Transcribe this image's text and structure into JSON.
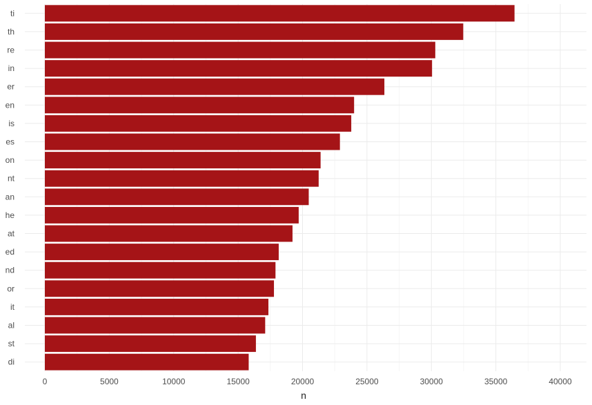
{
  "chart_data": {
    "type": "bar",
    "orientation": "horizontal",
    "categories": [
      "ti",
      "th",
      "re",
      "in",
      "er",
      "en",
      "is",
      "es",
      "on",
      "nt",
      "an",
      "he",
      "at",
      "ed",
      "nd",
      "or",
      "it",
      "al",
      "st",
      "di"
    ],
    "values": [
      36450,
      32470,
      30300,
      30050,
      26350,
      24000,
      23780,
      22900,
      21400,
      21250,
      20480,
      19700,
      19220,
      18150,
      17900,
      17780,
      17350,
      17100,
      16380,
      15820
    ],
    "xlabel": "n",
    "ylabel": "",
    "xlim": [
      0,
      41000
    ],
    "xticks": [
      0,
      5000,
      10000,
      15000,
      20000,
      25000,
      30000,
      35000,
      40000
    ],
    "xtick_labels": [
      "0",
      "5000",
      "10000",
      "15000",
      "20000",
      "25000",
      "30000",
      "35000",
      "40000"
    ],
    "grid": true,
    "colors": {
      "bar": "#a51417",
      "grid": "#ebebeb",
      "text": "#4d4d4d"
    }
  }
}
